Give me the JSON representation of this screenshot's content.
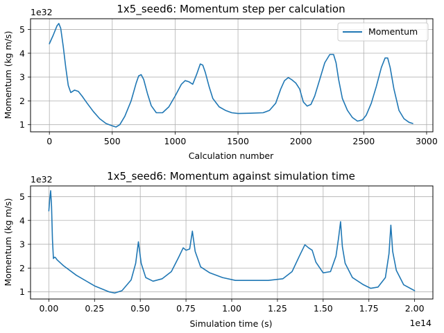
{
  "colors": {
    "line": "#1f77b4",
    "grid": "#b0b0b0",
    "axes": "#000000",
    "legend_border": "#cccccc"
  },
  "chart_data": [
    {
      "type": "line",
      "title": "1x5_seed6: Momentum step per calculation",
      "xlabel": "Calculation number",
      "ylabel": "Momentum (kg m/s)",
      "y_offset_label": "1e32",
      "xlim": [
        -150,
        3050
      ],
      "ylim": [
        0.7,
        5.45
      ],
      "x_ticks": [
        0,
        500,
        1000,
        1500,
        2000,
        2500,
        3000
      ],
      "x_tick_labels": [
        "0",
        "500",
        "1000",
        "1500",
        "2000",
        "2500",
        "3000"
      ],
      "y_ticks": [
        1,
        2,
        3,
        4,
        5
      ],
      "y_tick_labels": [
        "1",
        "2",
        "3",
        "4",
        "5"
      ],
      "grid": true,
      "legend": {
        "placement": "top-right",
        "entries": [
          "Momentum"
        ]
      },
      "series": [
        {
          "name": "Momentum",
          "x": [
            0,
            30,
            60,
            75,
            90,
            110,
            130,
            150,
            170,
            200,
            230,
            260,
            300,
            350,
            400,
            450,
            500,
            530,
            560,
            600,
            650,
            690,
            710,
            730,
            750,
            780,
            810,
            850,
            900,
            950,
            1000,
            1050,
            1080,
            1110,
            1140,
            1170,
            1200,
            1220,
            1240,
            1270,
            1300,
            1350,
            1400,
            1450,
            1500,
            1600,
            1700,
            1750,
            1800,
            1840,
            1870,
            1900,
            1930,
            1960,
            1990,
            2020,
            2050,
            2080,
            2110,
            2150,
            2190,
            2230,
            2260,
            2280,
            2300,
            2330,
            2370,
            2410,
            2450,
            2490,
            2520,
            2560,
            2600,
            2640,
            2670,
            2690,
            2710,
            2740,
            2780,
            2820,
            2860,
            2890
          ],
          "y": [
            4.4,
            4.75,
            5.15,
            5.25,
            5.05,
            4.3,
            3.4,
            2.65,
            2.35,
            2.45,
            2.4,
            2.2,
            1.9,
            1.55,
            1.25,
            1.05,
            0.95,
            0.9,
            1.0,
            1.35,
            2.0,
            2.75,
            3.05,
            3.1,
            2.9,
            2.3,
            1.8,
            1.5,
            1.5,
            1.75,
            2.2,
            2.7,
            2.85,
            2.8,
            2.7,
            3.1,
            3.55,
            3.5,
            3.2,
            2.6,
            2.1,
            1.75,
            1.6,
            1.5,
            1.47,
            1.48,
            1.5,
            1.6,
            1.9,
            2.5,
            2.85,
            2.98,
            2.88,
            2.75,
            2.5,
            1.95,
            1.78,
            1.85,
            2.2,
            2.9,
            3.6,
            3.95,
            3.95,
            3.6,
            2.9,
            2.1,
            1.6,
            1.3,
            1.15,
            1.2,
            1.4,
            1.9,
            2.6,
            3.4,
            3.8,
            3.8,
            3.4,
            2.5,
            1.6,
            1.25,
            1.1,
            1.05
          ]
        }
      ]
    },
    {
      "type": "line",
      "title": "1x5_seed6: Momentum against simulation time",
      "xlabel": "Simulation time (s)",
      "ylabel": "Momentum (kg m/s)",
      "y_offset_label": "1e32",
      "x_offset_label": "1e14",
      "xlim": [
        -0.1,
        2.1
      ],
      "ylim": [
        0.7,
        5.45
      ],
      "x_ticks": [
        0,
        0.25,
        0.5,
        0.75,
        1.0,
        1.25,
        1.5,
        1.75,
        2.0
      ],
      "x_tick_labels": [
        "0.00",
        "0.25",
        "0.50",
        "0.75",
        "1.00",
        "1.25",
        "1.50",
        "1.75",
        "2.00"
      ],
      "y_ticks": [
        1,
        2,
        3,
        4,
        5
      ],
      "y_tick_labels": [
        "1",
        "2",
        "3",
        "4",
        "5"
      ],
      "grid": true,
      "series": [
        {
          "name": "Momentum",
          "x": [
            0,
            0.005,
            0.01,
            0.015,
            0.02,
            0.025,
            0.03,
            0.035,
            0.045,
            0.08,
            0.15,
            0.25,
            0.33,
            0.36,
            0.4,
            0.45,
            0.475,
            0.49,
            0.505,
            0.53,
            0.57,
            0.62,
            0.67,
            0.71,
            0.735,
            0.75,
            0.77,
            0.785,
            0.8,
            0.83,
            0.88,
            0.95,
            1.02,
            1.1,
            1.2,
            1.28,
            1.33,
            1.37,
            1.4,
            1.42,
            1.44,
            1.46,
            1.5,
            1.54,
            1.57,
            1.585,
            1.595,
            1.605,
            1.62,
            1.66,
            1.72,
            1.76,
            1.8,
            1.84,
            1.86,
            1.87,
            1.88,
            1.9,
            1.94,
            2.0
          ],
          "y": [
            4.4,
            4.9,
            5.25,
            4.6,
            3.2,
            2.4,
            2.45,
            2.45,
            2.35,
            2.1,
            1.7,
            1.25,
            1.0,
            0.95,
            1.05,
            1.5,
            2.2,
            3.1,
            2.2,
            1.6,
            1.45,
            1.55,
            1.85,
            2.45,
            2.85,
            2.75,
            2.8,
            3.55,
            2.7,
            2.05,
            1.8,
            1.6,
            1.48,
            1.48,
            1.48,
            1.55,
            1.85,
            2.5,
            2.98,
            2.85,
            2.75,
            2.25,
            1.8,
            1.85,
            2.5,
            3.3,
            3.95,
            2.9,
            2.2,
            1.6,
            1.3,
            1.15,
            1.2,
            1.6,
            2.6,
            3.8,
            2.7,
            1.9,
            1.3,
            1.05
          ]
        }
      ]
    }
  ]
}
